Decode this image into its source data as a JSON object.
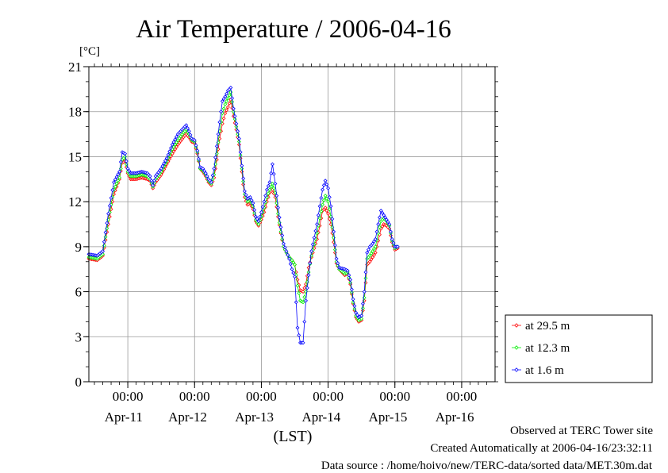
{
  "chart_data": {
    "type": "line",
    "title": "Air Temperature / 2006-04-16",
    "ylabel": "[°C]",
    "xlabel": "(LST)",
    "ylim": [
      0,
      21
    ],
    "yticks": [
      "0",
      "3",
      "6",
      "9",
      "12",
      "15",
      "18",
      "21"
    ],
    "x_unit": "hours since 2006-04-10 00:00 LST",
    "xlim": [
      10,
      156
    ],
    "grid": true,
    "legend_position": "right-bottom",
    "time_ticks": [
      {
        "x": 24,
        "label": "00:00",
        "date": "Apr-11"
      },
      {
        "x": 48,
        "label": "00:00",
        "date": "Apr-12"
      },
      {
        "x": 72,
        "label": "00:00",
        "date": "Apr-13"
      },
      {
        "x": 96,
        "label": "00:00",
        "date": "Apr-14"
      },
      {
        "x": 120,
        "label": "00:00",
        "date": "Apr-15"
      },
      {
        "x": 144,
        "label": "00:00",
        "date": "Apr-16"
      }
    ],
    "date_labels": [
      {
        "x": 22.5,
        "label": "Apr-11"
      },
      {
        "x": 45.5,
        "label": "Apr-12"
      },
      {
        "x": 69.5,
        "label": "Apr-13"
      },
      {
        "x": 93.5,
        "label": "Apr-14"
      },
      {
        "x": 117.5,
        "label": "Apr-15"
      },
      {
        "x": 141.5,
        "label": "Apr-16"
      }
    ],
    "series": [
      {
        "name": "at 29.5 m",
        "color": "#ff0000",
        "points": [
          [
            10,
            8.2
          ],
          [
            13,
            8.1
          ],
          [
            15,
            8.4
          ],
          [
            17,
            10.5
          ],
          [
            19,
            12.5
          ],
          [
            21,
            13.5
          ],
          [
            22,
            14.6
          ],
          [
            23,
            14.7
          ],
          [
            24,
            13.9
          ],
          [
            25,
            13.5
          ],
          [
            27,
            13.5
          ],
          [
            29,
            13.6
          ],
          [
            31,
            13.5
          ],
          [
            32,
            13.4
          ],
          [
            33,
            12.9
          ],
          [
            34,
            13.3
          ],
          [
            36,
            13.8
          ],
          [
            38,
            14.5
          ],
          [
            40,
            15.2
          ],
          [
            42,
            15.8
          ],
          [
            44,
            16.3
          ],
          [
            45,
            16.5
          ],
          [
            46,
            16.3
          ],
          [
            47,
            16.0
          ],
          [
            48,
            15.9
          ],
          [
            49,
            15.2
          ],
          [
            50,
            14.2
          ],
          [
            51,
            14.0
          ],
          [
            52,
            13.7
          ],
          [
            53,
            13.3
          ],
          [
            54,
            13.1
          ],
          [
            55,
            13.6
          ],
          [
            56,
            14.8
          ],
          [
            57,
            16.2
          ],
          [
            58,
            17.2
          ],
          [
            59,
            17.9
          ],
          [
            60,
            18.3
          ],
          [
            61,
            18.8
          ],
          [
            62,
            17.7
          ],
          [
            63,
            16.8
          ],
          [
            64,
            15.8
          ],
          [
            65,
            14.0
          ],
          [
            66,
            12.3
          ],
          [
            67,
            11.8
          ],
          [
            68,
            11.9
          ],
          [
            69,
            11.5
          ],
          [
            70,
            10.7
          ],
          [
            71,
            10.4
          ],
          [
            72,
            10.8
          ],
          [
            73,
            11.3
          ],
          [
            74,
            12.0
          ],
          [
            75,
            12.6
          ],
          [
            76,
            12.8
          ],
          [
            77,
            12.3
          ],
          [
            78,
            11.0
          ],
          [
            79,
            9.9
          ],
          [
            80,
            9.0
          ],
          [
            81,
            8.6
          ],
          [
            82,
            8.3
          ],
          [
            83,
            8.1
          ],
          [
            84,
            7.8
          ],
          [
            85,
            6.8
          ],
          [
            86,
            6.1
          ],
          [
            87,
            6.0
          ],
          [
            88,
            6.5
          ],
          [
            89,
            7.6
          ],
          [
            90,
            8.3
          ],
          [
            92,
            9.5
          ],
          [
            93,
            10.4
          ],
          [
            94,
            11.4
          ],
          [
            95,
            11.6
          ],
          [
            96,
            11.2
          ],
          [
            97,
            10.5
          ],
          [
            98,
            9.3
          ],
          [
            99,
            7.9
          ],
          [
            100,
            7.5
          ],
          [
            102,
            7.1
          ],
          [
            103,
            7.2
          ],
          [
            104,
            6.5
          ],
          [
            105,
            5.2
          ],
          [
            106,
            4.3
          ],
          [
            107,
            4.0
          ],
          [
            108,
            4.1
          ],
          [
            109,
            5.4
          ],
          [
            110,
            7.8
          ],
          [
            111,
            8.0
          ],
          [
            112,
            8.3
          ],
          [
            113,
            8.6
          ],
          [
            114,
            9.4
          ],
          [
            115,
            10.2
          ],
          [
            116,
            10.5
          ],
          [
            117,
            10.4
          ],
          [
            118,
            10.2
          ],
          [
            119,
            9.3
          ],
          [
            120,
            8.8
          ],
          [
            121,
            8.9
          ]
        ]
      },
      {
        "name": "at 12.3 m",
        "color": "#00ee00",
        "points": [
          [
            10,
            8.3
          ],
          [
            13,
            8.2
          ],
          [
            15,
            8.5
          ],
          [
            17,
            10.8
          ],
          [
            19,
            12.8
          ],
          [
            21,
            13.6
          ],
          [
            22,
            14.8
          ],
          [
            23,
            15.0
          ],
          [
            24,
            14.0
          ],
          [
            25,
            13.7
          ],
          [
            27,
            13.7
          ],
          [
            29,
            13.8
          ],
          [
            31,
            13.7
          ],
          [
            32,
            13.5
          ],
          [
            33,
            13.0
          ],
          [
            34,
            13.5
          ],
          [
            36,
            14.0
          ],
          [
            38,
            14.7
          ],
          [
            40,
            15.5
          ],
          [
            42,
            16.1
          ],
          [
            44,
            16.6
          ],
          [
            45,
            16.8
          ],
          [
            46,
            16.5
          ],
          [
            47,
            16.1
          ],
          [
            48,
            16.0
          ],
          [
            49,
            15.3
          ],
          [
            50,
            14.2
          ],
          [
            51,
            14.1
          ],
          [
            52,
            13.8
          ],
          [
            53,
            13.4
          ],
          [
            54,
            13.2
          ],
          [
            55,
            13.8
          ],
          [
            56,
            15.2
          ],
          [
            57,
            16.7
          ],
          [
            58,
            17.9
          ],
          [
            59,
            18.5
          ],
          [
            60,
            18.9
          ],
          [
            61,
            19.3
          ],
          [
            62,
            18.0
          ],
          [
            63,
            17.0
          ],
          [
            64,
            16.0
          ],
          [
            65,
            14.2
          ],
          [
            66,
            12.5
          ],
          [
            67,
            12.0
          ],
          [
            68,
            12.1
          ],
          [
            69,
            11.7
          ],
          [
            70,
            10.8
          ],
          [
            71,
            10.5
          ],
          [
            72,
            11.0
          ],
          [
            73,
            11.6
          ],
          [
            74,
            12.3
          ],
          [
            75,
            12.8
          ],
          [
            76,
            13.2
          ],
          [
            77,
            12.6
          ],
          [
            78,
            11.2
          ],
          [
            79,
            10.0
          ],
          [
            80,
            9.0
          ],
          [
            81,
            8.6
          ],
          [
            82,
            8.3
          ],
          [
            83,
            8.1
          ],
          [
            84,
            7.8
          ],
          [
            85,
            6.4
          ],
          [
            86,
            5.4
          ],
          [
            87,
            5.3
          ],
          [
            88,
            6.0
          ],
          [
            89,
            7.3
          ],
          [
            90,
            8.4
          ],
          [
            92,
            9.9
          ],
          [
            93,
            10.9
          ],
          [
            94,
            11.8
          ],
          [
            95,
            12.4
          ],
          [
            96,
            12.0
          ],
          [
            97,
            11.0
          ],
          [
            98,
            9.6
          ],
          [
            99,
            8.0
          ],
          [
            100,
            7.5
          ],
          [
            102,
            7.2
          ],
          [
            103,
            7.3
          ],
          [
            104,
            6.6
          ],
          [
            105,
            5.3
          ],
          [
            106,
            4.4
          ],
          [
            107,
            4.1
          ],
          [
            108,
            4.2
          ],
          [
            109,
            5.6
          ],
          [
            110,
            8.2
          ],
          [
            111,
            8.4
          ],
          [
            112,
            8.7
          ],
          [
            113,
            9.0
          ],
          [
            114,
            9.9
          ],
          [
            115,
            10.7
          ],
          [
            116,
            10.9
          ],
          [
            117,
            10.7
          ],
          [
            118,
            10.4
          ],
          [
            119,
            9.4
          ],
          [
            120,
            8.9
          ],
          [
            121,
            9.0
          ]
        ]
      },
      {
        "name": "at 1.6 m",
        "color": "#0000ff",
        "points": [
          [
            10,
            8.5
          ],
          [
            13,
            8.4
          ],
          [
            15,
            8.7
          ],
          [
            17,
            11.2
          ],
          [
            19,
            13.3
          ],
          [
            21,
            14.0
          ],
          [
            22,
            15.3
          ],
          [
            23,
            15.2
          ],
          [
            24,
            14.2
          ],
          [
            25,
            13.9
          ],
          [
            27,
            13.9
          ],
          [
            29,
            14.0
          ],
          [
            31,
            13.9
          ],
          [
            32,
            13.7
          ],
          [
            33,
            13.1
          ],
          [
            34,
            13.7
          ],
          [
            36,
            14.2
          ],
          [
            38,
            14.9
          ],
          [
            40,
            15.8
          ],
          [
            42,
            16.5
          ],
          [
            44,
            16.9
          ],
          [
            45,
            17.1
          ],
          [
            46,
            16.7
          ],
          [
            47,
            16.2
          ],
          [
            48,
            16.1
          ],
          [
            49,
            15.4
          ],
          [
            50,
            14.3
          ],
          [
            51,
            14.2
          ],
          [
            52,
            13.9
          ],
          [
            53,
            13.5
          ],
          [
            54,
            13.3
          ],
          [
            55,
            14.2
          ],
          [
            56,
            15.7
          ],
          [
            57,
            17.3
          ],
          [
            58,
            18.7
          ],
          [
            59,
            19.0
          ],
          [
            60,
            19.4
          ],
          [
            61,
            19.6
          ],
          [
            62,
            18.2
          ],
          [
            63,
            17.2
          ],
          [
            64,
            16.2
          ],
          [
            65,
            14.4
          ],
          [
            66,
            12.7
          ],
          [
            67,
            12.2
          ],
          [
            68,
            12.3
          ],
          [
            69,
            11.9
          ],
          [
            70,
            11.0
          ],
          [
            71,
            10.7
          ],
          [
            72,
            11.3
          ],
          [
            73,
            12.0
          ],
          [
            74,
            12.8
          ],
          [
            75,
            13.3
          ],
          [
            76,
            14.5
          ],
          [
            77,
            13.2
          ],
          [
            78,
            11.6
          ],
          [
            79,
            10.3
          ],
          [
            80,
            9.2
          ],
          [
            81,
            8.7
          ],
          [
            82,
            8.2
          ],
          [
            83,
            7.5
          ],
          [
            84,
            7.0
          ],
          [
            85,
            3.6
          ],
          [
            86,
            2.6
          ],
          [
            87,
            2.6
          ],
          [
            88,
            5.4
          ],
          [
            89,
            7.1
          ],
          [
            90,
            8.7
          ],
          [
            92,
            10.5
          ],
          [
            93,
            11.7
          ],
          [
            94,
            12.8
          ],
          [
            95,
            13.4
          ],
          [
            96,
            12.9
          ],
          [
            97,
            11.7
          ],
          [
            98,
            10.0
          ],
          [
            99,
            8.2
          ],
          [
            100,
            7.6
          ],
          [
            102,
            7.5
          ],
          [
            103,
            7.4
          ],
          [
            104,
            6.8
          ],
          [
            105,
            5.5
          ],
          [
            106,
            4.6
          ],
          [
            107,
            4.3
          ],
          [
            108,
            4.4
          ],
          [
            109,
            6.0
          ],
          [
            110,
            8.6
          ],
          [
            111,
            9.0
          ],
          [
            112,
            9.2
          ],
          [
            113,
            9.5
          ],
          [
            114,
            10.5
          ],
          [
            115,
            11.4
          ],
          [
            116,
            11.1
          ],
          [
            117,
            10.8
          ],
          [
            118,
            10.5
          ],
          [
            119,
            9.5
          ],
          [
            120,
            9.0
          ],
          [
            121,
            9.0
          ]
        ]
      }
    ]
  },
  "footer": {
    "line1": "Observed at TERC Tower site",
    "line2": "Created Automatically at 2006-04-16/23:32:11",
    "line3": "Data source : /home/hoivo/new/TERC-data/sorted  data/MET.30m.dat"
  }
}
